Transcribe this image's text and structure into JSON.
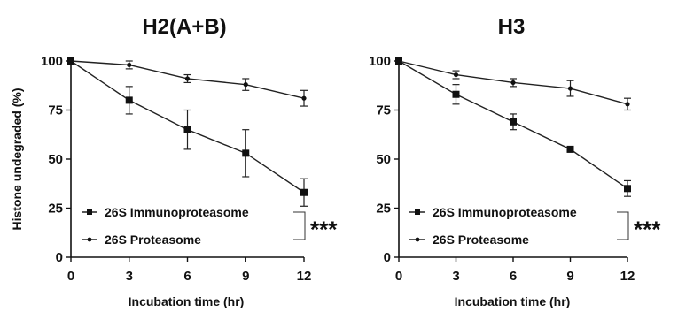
{
  "chart_data": [
    {
      "type": "line",
      "title": "H2(A+B)",
      "xlabel": "Incubation time (hr)",
      "ylabel": "Histone undegraded (%)",
      "x": [
        0,
        3,
        6,
        9,
        12
      ],
      "xticks": [
        "0",
        "3",
        "6",
        "9",
        "12"
      ],
      "yticks": [
        "0",
        "25",
        "50",
        "75",
        "100"
      ],
      "xlim": [
        0,
        12
      ],
      "ylim": [
        0,
        100
      ],
      "series": [
        {
          "name": "26S Immunoproteasome",
          "marker": "square",
          "values": [
            100,
            80,
            65,
            53,
            33
          ],
          "errors": [
            0,
            7,
            10,
            12,
            7
          ]
        },
        {
          "name": "26S Proteasome",
          "marker": "diamond",
          "values": [
            100,
            98,
            91,
            88,
            81
          ],
          "errors": [
            0,
            2,
            2,
            3,
            4
          ]
        }
      ],
      "significance": "***",
      "legend_position": "bottom-left"
    },
    {
      "type": "line",
      "title": "H3",
      "xlabel": "Incubation time (hr)",
      "ylabel": "",
      "x": [
        0,
        3,
        6,
        9,
        12
      ],
      "xticks": [
        "0",
        "3",
        "6",
        "9",
        "12"
      ],
      "yticks": [
        "0",
        "25",
        "50",
        "75",
        "100"
      ],
      "xlim": [
        0,
        12
      ],
      "ylim": [
        0,
        100
      ],
      "series": [
        {
          "name": "26S Immunoproteasome",
          "marker": "square",
          "values": [
            100,
            83,
            69,
            55,
            35
          ],
          "errors": [
            0,
            5,
            4,
            1,
            4
          ]
        },
        {
          "name": "26S Proteasome",
          "marker": "diamond",
          "values": [
            100,
            93,
            89,
            86,
            78
          ],
          "errors": [
            0,
            2,
            2,
            4,
            3
          ]
        }
      ],
      "significance": "***",
      "legend_position": "bottom-left"
    }
  ]
}
